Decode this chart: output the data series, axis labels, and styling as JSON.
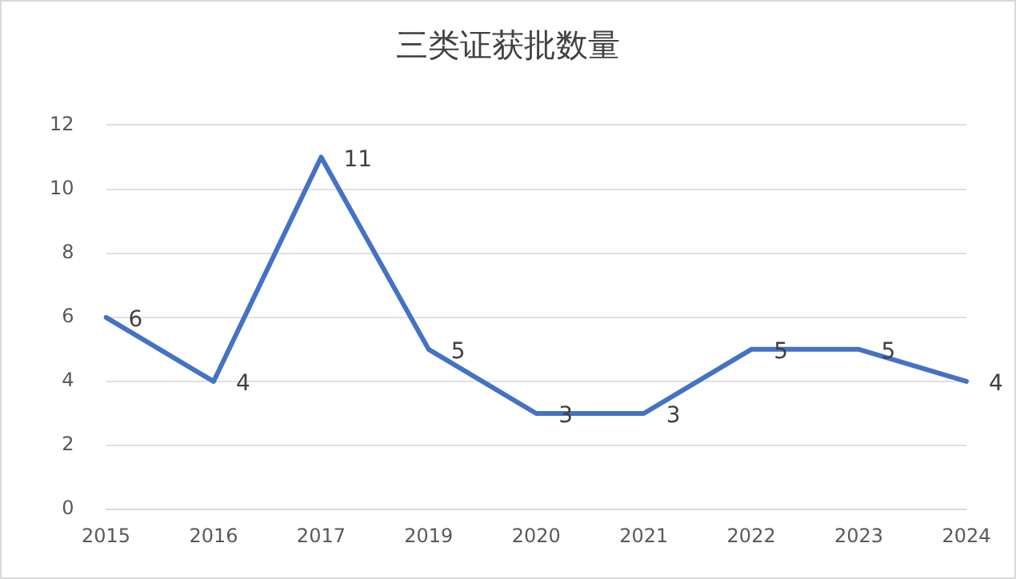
{
  "chart_data": {
    "type": "line",
    "title": "三类证获批数量",
    "categories": [
      "2015",
      "2016",
      "2017",
      "2019",
      "2020",
      "2021",
      "2022",
      "2023",
      "2024"
    ],
    "series": [
      {
        "color": "#4472c4",
        "values": [
          6,
          4,
          11,
          5,
          3,
          3,
          5,
          5,
          4
        ]
      }
    ],
    "ylim": [
      0,
      12
    ],
    "yticks": [
      0,
      2,
      4,
      6,
      8,
      10,
      12
    ],
    "grid": "y",
    "legend": false,
    "marker": "none",
    "line_style": "solid",
    "data_labels": true
  }
}
